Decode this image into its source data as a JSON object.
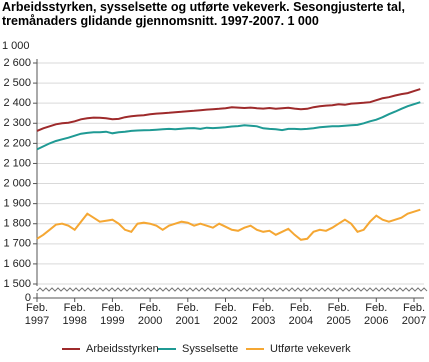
{
  "chart_data": {
    "type": "line",
    "title": "Arbeidsstyrken, sysselsette og utførte vekeverk. Sesongjusterte tal, tremånaders glidande gjennomsnitt. 1997-2007. 1 000",
    "y_unit": "1 000",
    "x": [
      "1997-02",
      "1997-04",
      "1997-06",
      "1997-08",
      "1997-10",
      "1997-12",
      "1998-02",
      "1998-04",
      "1998-06",
      "1998-08",
      "1998-10",
      "1998-12",
      "1999-02",
      "1999-04",
      "1999-06",
      "1999-08",
      "1999-10",
      "1999-12",
      "2000-02",
      "2000-04",
      "2000-06",
      "2000-08",
      "2000-10",
      "2000-12",
      "2001-02",
      "2001-04",
      "2001-06",
      "2001-08",
      "2001-10",
      "2001-12",
      "2002-02",
      "2002-04",
      "2002-06",
      "2002-08",
      "2002-10",
      "2002-12",
      "2003-02",
      "2003-04",
      "2003-06",
      "2003-08",
      "2003-10",
      "2003-12",
      "2004-02",
      "2004-04",
      "2004-06",
      "2004-08",
      "2004-10",
      "2004-12",
      "2005-02",
      "2005-04",
      "2005-06",
      "2005-08",
      "2005-10",
      "2005-12",
      "2006-02",
      "2006-04",
      "2006-06",
      "2006-08",
      "2006-10",
      "2006-12",
      "2007-02",
      "2007-04"
    ],
    "xticks": [
      {
        "value": "1997-02",
        "label": "Feb. 1997"
      },
      {
        "value": "1998-02",
        "label": "Feb. 1998"
      },
      {
        "value": "1999-02",
        "label": "Feb. 1999"
      },
      {
        "value": "2000-02",
        "label": "Feb. 2000"
      },
      {
        "value": "2001-02",
        "label": "Feb. 2001"
      },
      {
        "value": "2002-02",
        "label": "Feb. 2002"
      },
      {
        "value": "2003-02",
        "label": "Feb. 2003"
      },
      {
        "value": "2004-02",
        "label": "Feb. 2004"
      },
      {
        "value": "2005-02",
        "label": "Feb. 2005"
      },
      {
        "value": "2006-02",
        "label": "Feb. 2006"
      },
      {
        "value": "2007-02",
        "label": "Feb. 2007"
      }
    ],
    "ylim": [
      1500,
      2600
    ],
    "yticks": [
      0,
      {
        "value": 1500,
        "label": "1 500"
      },
      {
        "value": 1600,
        "label": "1 600"
      },
      {
        "value": 1700,
        "label": "1 700"
      },
      {
        "value": 1800,
        "label": "1 800"
      },
      {
        "value": 1900,
        "label": "1 900"
      },
      {
        "value": 2000,
        "label": "2 000"
      },
      {
        "value": 2100,
        "label": "2 100"
      },
      {
        "value": 2200,
        "label": "2 200"
      },
      {
        "value": 2300,
        "label": "2 300"
      },
      {
        "value": 2400,
        "label": "2 400"
      },
      {
        "value": 2500,
        "label": "2 500"
      },
      {
        "value": 2600,
        "label": "2 600"
      }
    ],
    "axis_break": true,
    "grid": true,
    "series": [
      {
        "name": "Arbeidsstyrken",
        "color": "#9e2a2b",
        "values": [
          2262,
          2275,
          2285,
          2295,
          2300,
          2303,
          2310,
          2320,
          2325,
          2328,
          2327,
          2325,
          2320,
          2322,
          2330,
          2335,
          2338,
          2340,
          2345,
          2348,
          2350,
          2352,
          2355,
          2357,
          2360,
          2362,
          2365,
          2368,
          2370,
          2372,
          2375,
          2380,
          2378,
          2376,
          2378,
          2375,
          2373,
          2376,
          2372,
          2375,
          2377,
          2373,
          2370,
          2372,
          2380,
          2385,
          2388,
          2390,
          2395,
          2392,
          2398,
          2400,
          2402,
          2405,
          2415,
          2425,
          2430,
          2438,
          2445,
          2450,
          2460,
          2470
        ]
      },
      {
        "name": "Sysselsette",
        "color": "#1f9a94",
        "values": [
          2170,
          2185,
          2200,
          2212,
          2220,
          2228,
          2238,
          2248,
          2252,
          2255,
          2255,
          2258,
          2250,
          2255,
          2258,
          2262,
          2264,
          2265,
          2266,
          2268,
          2270,
          2272,
          2270,
          2273,
          2275,
          2276,
          2272,
          2278,
          2276,
          2278,
          2280,
          2284,
          2286,
          2290,
          2288,
          2285,
          2275,
          2272,
          2270,
          2266,
          2272,
          2272,
          2270,
          2272,
          2275,
          2280,
          2283,
          2285,
          2285,
          2288,
          2290,
          2292,
          2300,
          2310,
          2318,
          2330,
          2345,
          2358,
          2372,
          2385,
          2395,
          2405
        ]
      },
      {
        "name": "Utførte vekeverk",
        "color": "#f5a733",
        "values": [
          1725,
          1745,
          1770,
          1795,
          1800,
          1790,
          1770,
          1810,
          1850,
          1830,
          1810,
          1815,
          1820,
          1800,
          1770,
          1760,
          1800,
          1805,
          1800,
          1790,
          1770,
          1790,
          1800,
          1810,
          1805,
          1790,
          1800,
          1790,
          1780,
          1800,
          1785,
          1770,
          1765,
          1780,
          1790,
          1770,
          1760,
          1765,
          1745,
          1760,
          1775,
          1745,
          1720,
          1725,
          1760,
          1770,
          1765,
          1780,
          1800,
          1820,
          1800,
          1760,
          1770,
          1810,
          1840,
          1820,
          1810,
          1820,
          1830,
          1850,
          1860,
          1870
        ]
      }
    ]
  }
}
